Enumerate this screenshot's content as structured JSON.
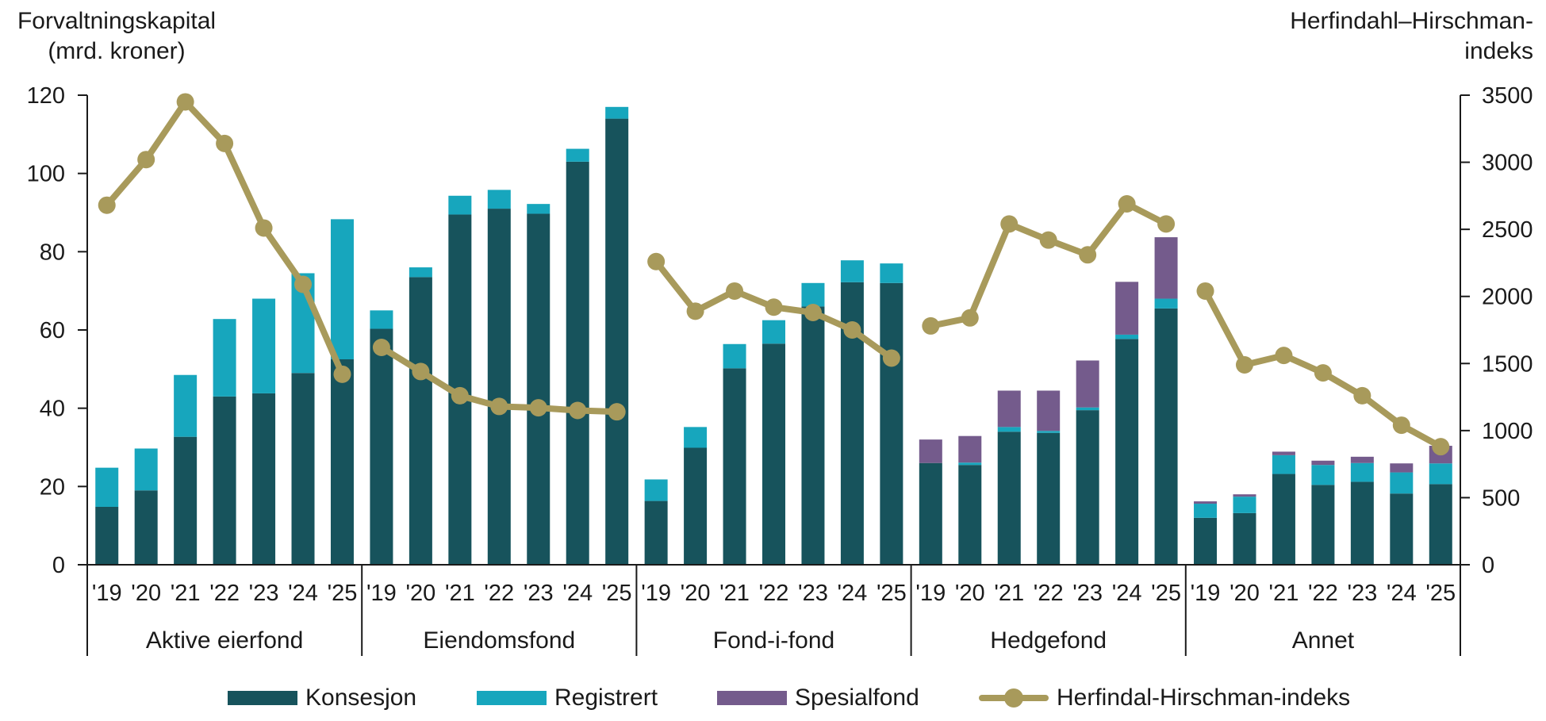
{
  "colors": {
    "konsesjon": "#17535c",
    "registrert": "#17a6bd",
    "spesialfond": "#745b8c",
    "hhi": "#a89a5b",
    "axis": "#1a1a1a"
  },
  "chart_data": {
    "type": "bar",
    "stacked": true,
    "left_axis_title": [
      "Forvaltningskapital",
      "(mrd. kroner)"
    ],
    "right_axis_title": [
      "Herfindahl–Hirschman-",
      "indeks"
    ],
    "ylim_left": [
      0,
      120
    ],
    "yticks_left": [
      0,
      20,
      40,
      60,
      80,
      100,
      120
    ],
    "ylim_right": [
      0,
      3500
    ],
    "yticks_right": [
      0,
      500,
      1000,
      1500,
      2000,
      2500,
      3000,
      3500
    ],
    "year_labels": [
      "'19",
      "'20",
      "'21",
      "'22",
      "'23",
      "'24",
      "'25"
    ],
    "legend_position": "bottom",
    "legend": {
      "konsesjon": "Konsesjon",
      "registrert": "Registrert",
      "spesialfond": "Spesialfond",
      "hhi": "Herfindal-Hirschman-indeks"
    },
    "groups": [
      {
        "name": "Aktive eierfond",
        "konsesjon": [
          14.8,
          19.0,
          32.7,
          43.0,
          43.8,
          49.0,
          52.5
        ],
        "registrert": [
          10.0,
          10.7,
          15.8,
          19.8,
          24.2,
          25.5,
          35.8
        ],
        "spesialfond": [
          0,
          0,
          0,
          0,
          0,
          0,
          0
        ],
        "hhi": [
          2680,
          3020,
          3450,
          3140,
          2510,
          2090,
          1420
        ]
      },
      {
        "name": "Eiendomsfond",
        "konsesjon": [
          60.3,
          73.5,
          89.5,
          91.0,
          89.7,
          103.0,
          114.0
        ],
        "registrert": [
          4.7,
          2.5,
          4.8,
          4.8,
          2.5,
          3.3,
          3.0
        ],
        "spesialfond": [
          0,
          0,
          0,
          0,
          0,
          0,
          0
        ],
        "hhi": [
          1620,
          1440,
          1260,
          1180,
          1170,
          1150,
          1140
        ]
      },
      {
        "name": "Fond-i-fond",
        "konsesjon": [
          16.3,
          29.9,
          50.2,
          56.5,
          66.0,
          72.2,
          72.0
        ],
        "registrert": [
          5.5,
          5.3,
          6.2,
          6.0,
          6.0,
          5.6,
          5.0
        ],
        "spesialfond": [
          0,
          0,
          0,
          0,
          0,
          0,
          0
        ],
        "hhi": [
          2260,
          1890,
          2040,
          1920,
          1880,
          1750,
          1540
        ]
      },
      {
        "name": "Hedgefond",
        "konsesjon": [
          26.0,
          25.5,
          34.0,
          33.7,
          39.5,
          57.7,
          65.5
        ],
        "registrert": [
          0,
          0.6,
          1.2,
          0.5,
          0.7,
          1.1,
          2.5
        ],
        "spesialfond": [
          6.0,
          6.8,
          9.3,
          10.3,
          12.0,
          13.5,
          15.7
        ],
        "hhi": [
          1780,
          1840,
          2540,
          2420,
          2310,
          2690,
          2540
        ]
      },
      {
        "name": "Annet",
        "konsesjon": [
          12.0,
          13.2,
          23.2,
          20.4,
          21.2,
          18.2,
          20.6
        ],
        "registrert": [
          3.6,
          4.2,
          4.8,
          5.1,
          4.8,
          5.4,
          5.3
        ],
        "spesialfond": [
          0.6,
          0.6,
          0.9,
          1.1,
          1.6,
          2.3,
          4.5
        ],
        "hhi": [
          2040,
          1490,
          1560,
          1430,
          1260,
          1040,
          880
        ]
      }
    ]
  }
}
